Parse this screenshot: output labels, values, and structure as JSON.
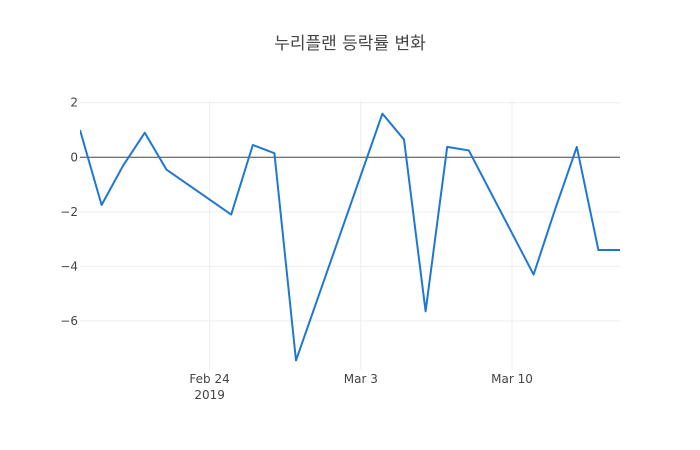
{
  "chart_data": {
    "type": "line",
    "title": "누리플랜 등락률 변화",
    "xlabel": "",
    "ylabel": "",
    "x": [
      "2019-02-18",
      "2019-02-19",
      "2019-02-20",
      "2019-02-21",
      "2019-02-22",
      "2019-02-25",
      "2019-02-26",
      "2019-02-27",
      "2019-02-28",
      "2019-03-04",
      "2019-03-05",
      "2019-03-06",
      "2019-03-07",
      "2019-03-08",
      "2019-03-11",
      "2019-03-12",
      "2019-03-13",
      "2019-03-14",
      "2019-03-15"
    ],
    "series": [
      {
        "values": [
          1.0,
          -1.75,
          -0.3,
          0.9,
          -0.45,
          -2.1,
          0.45,
          0.15,
          -7.45,
          1.6,
          0.65,
          -5.65,
          0.38,
          0.25,
          -4.3,
          -1.9,
          0.38,
          -3.4,
          -3.4
        ]
      }
    ],
    "x_ticks": [
      {
        "date": "2019-02-24",
        "label": "Feb 24",
        "sublabel": "2019"
      },
      {
        "date": "2019-03-03",
        "label": "Mar 3",
        "sublabel": ""
      },
      {
        "date": "2019-03-10",
        "label": "Mar 10",
        "sublabel": ""
      }
    ],
    "y_ticks": [
      {
        "value": 2,
        "label": "2"
      },
      {
        "value": 0,
        "label": "0"
      },
      {
        "value": -2,
        "label": "−2"
      },
      {
        "value": -4,
        "label": "−4"
      },
      {
        "value": -6,
        "label": "−6"
      }
    ],
    "xlim": [
      "2019-02-18",
      "2019-03-15"
    ],
    "ylim": [
      -7.8,
      2.1
    ],
    "grid": true,
    "zeroline": true,
    "colors": {
      "line": "#1f77d4",
      "grid": "#eeeeee",
      "zeroline": "#444444"
    }
  }
}
